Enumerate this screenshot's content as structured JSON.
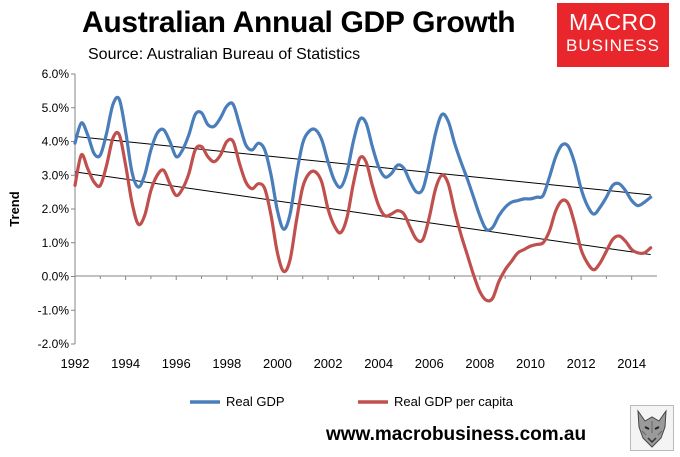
{
  "header": {
    "title": "Australian Annual GDP Growth",
    "subtitle": "Source: Australian Bureau of Statistics"
  },
  "logo": {
    "line1": "MACRO",
    "line2": "BUSINESS",
    "color": "#e8262b"
  },
  "footer": {
    "url": "www.macrobusiness.com.au",
    "icon": "wolf-head-icon"
  },
  "chart_data": {
    "type": "line",
    "title": "Australian Annual GDP Growth",
    "subtitle": "Source: Australian Bureau of Statistics",
    "xlabel": "",
    "ylabel": "Trend",
    "xlim": [
      1992,
      2015
    ],
    "ylim": [
      -2.0,
      6.0
    ],
    "x_ticks": [
      "1992",
      "1994",
      "1996",
      "1998",
      "2000",
      "2002",
      "2004",
      "2006",
      "2008",
      "2010",
      "2012",
      "2014"
    ],
    "y_ticks": [
      "-2.0%",
      "-1.0%",
      "0.0%",
      "1.0%",
      "2.0%",
      "3.0%",
      "4.0%",
      "5.0%",
      "6.0%"
    ],
    "grid": false,
    "legend": "bottom",
    "x": [
      1992.0,
      1992.25,
      1992.5,
      1992.75,
      1993.0,
      1993.25,
      1993.5,
      1993.75,
      1994.0,
      1994.25,
      1994.5,
      1994.75,
      1995.0,
      1995.25,
      1995.5,
      1995.75,
      1996.0,
      1996.25,
      1996.5,
      1996.75,
      1997.0,
      1997.25,
      1997.5,
      1997.75,
      1998.0,
      1998.25,
      1998.5,
      1998.75,
      1999.0,
      1999.25,
      1999.5,
      1999.75,
      2000.0,
      2000.25,
      2000.5,
      2000.75,
      2001.0,
      2001.25,
      2001.5,
      2001.75,
      2002.0,
      2002.25,
      2002.5,
      2002.75,
      2003.0,
      2003.25,
      2003.5,
      2003.75,
      2004.0,
      2004.25,
      2004.5,
      2004.75,
      2005.0,
      2005.25,
      2005.5,
      2005.75,
      2006.0,
      2006.25,
      2006.5,
      2006.75,
      2007.0,
      2007.25,
      2007.5,
      2007.75,
      2008.0,
      2008.25,
      2008.5,
      2008.75,
      2009.0,
      2009.25,
      2009.5,
      2009.75,
      2010.0,
      2010.25,
      2010.5,
      2010.75,
      2011.0,
      2011.25,
      2011.5,
      2011.75,
      2012.0,
      2012.25,
      2012.5,
      2012.75,
      2013.0,
      2013.25,
      2013.5,
      2013.75,
      2014.0,
      2014.25,
      2014.5,
      2014.75
    ],
    "series": [
      {
        "name": "Real GDP",
        "color": "#4a7ebb",
        "values": [
          3.95,
          4.55,
          4.2,
          3.65,
          3.6,
          4.25,
          5.1,
          5.25,
          4.3,
          3.1,
          2.65,
          3.0,
          3.75,
          4.25,
          4.35,
          4.0,
          3.55,
          3.75,
          4.2,
          4.8,
          4.85,
          4.5,
          4.45,
          4.7,
          5.05,
          5.1,
          4.5,
          3.9,
          3.75,
          3.95,
          3.75,
          3.0,
          1.95,
          1.4,
          1.85,
          3.0,
          3.95,
          4.3,
          4.35,
          4.05,
          3.4,
          2.85,
          2.65,
          3.1,
          4.0,
          4.65,
          4.55,
          3.85,
          3.25,
          2.95,
          3.05,
          3.3,
          3.2,
          2.8,
          2.5,
          2.6,
          3.35,
          4.25,
          4.8,
          4.6,
          3.95,
          3.4,
          2.9,
          2.35,
          1.8,
          1.4,
          1.45,
          1.8,
          2.05,
          2.2,
          2.25,
          2.3,
          2.3,
          2.35,
          2.4,
          2.95,
          3.55,
          3.9,
          3.85,
          3.35,
          2.6,
          2.1,
          1.85,
          2.05,
          2.35,
          2.7,
          2.75,
          2.55,
          2.25,
          2.1,
          2.2,
          2.35
        ]
      },
      {
        "name": "Real GDP per capita",
        "color": "#c0504d",
        "values": [
          2.7,
          3.6,
          3.2,
          2.8,
          2.7,
          3.3,
          4.1,
          4.2,
          3.3,
          2.2,
          1.55,
          1.8,
          2.55,
          3.0,
          3.15,
          2.75,
          2.4,
          2.6,
          3.05,
          3.75,
          3.85,
          3.55,
          3.4,
          3.6,
          4.0,
          4.0,
          3.35,
          2.8,
          2.6,
          2.75,
          2.6,
          1.8,
          0.7,
          0.15,
          0.5,
          1.65,
          2.65,
          3.05,
          3.1,
          2.8,
          2.0,
          1.5,
          1.3,
          1.75,
          2.75,
          3.5,
          3.4,
          2.7,
          2.1,
          1.8,
          1.85,
          1.95,
          1.85,
          1.45,
          1.1,
          1.1,
          1.75,
          2.6,
          3.0,
          2.75,
          1.95,
          1.25,
          0.65,
          0.05,
          -0.45,
          -0.7,
          -0.65,
          -0.15,
          0.2,
          0.45,
          0.7,
          0.8,
          0.9,
          0.95,
          1.0,
          1.35,
          1.95,
          2.25,
          2.15,
          1.55,
          0.8,
          0.4,
          0.2,
          0.4,
          0.75,
          1.1,
          1.2,
          1.05,
          0.8,
          0.7,
          0.7,
          0.85
        ]
      }
    ],
    "trendlines": [
      {
        "of": "Real GDP",
        "x": [
          1992.0,
          2014.75
        ],
        "y": [
          4.15,
          2.42
        ],
        "color": "#000000"
      },
      {
        "of": "Real GDP per capita",
        "x": [
          1992.0,
          2014.75
        ],
        "y": [
          3.1,
          0.65
        ],
        "color": "#000000"
      }
    ]
  }
}
